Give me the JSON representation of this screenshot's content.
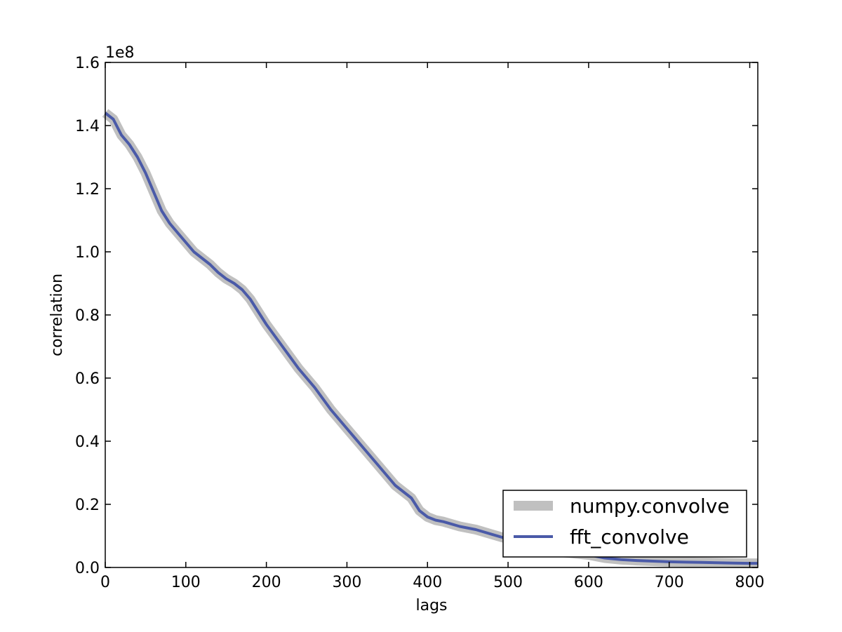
{
  "chart_data": {
    "type": "line",
    "title": "",
    "xlabel": "lags",
    "ylabel": "correlation",
    "y_offset_label": "1e8",
    "xlim": [
      0,
      810
    ],
    "ylim": [
      0,
      1.6
    ],
    "x_ticks": [
      0,
      100,
      200,
      300,
      400,
      500,
      600,
      700,
      800
    ],
    "x_tick_labels": [
      "0",
      "100",
      "200",
      "300",
      "400",
      "500",
      "600",
      "700",
      "800"
    ],
    "y_ticks": [
      0.0,
      0.2,
      0.4,
      0.6,
      0.8,
      1.0,
      1.2,
      1.4,
      1.6
    ],
    "y_tick_labels": [
      "0.0",
      "0.2",
      "0.4",
      "0.6",
      "0.8",
      "1.0",
      "1.2",
      "1.4",
      "1.6"
    ],
    "grid": false,
    "legend_position": "lower-right",
    "x": [
      0,
      10,
      20,
      30,
      40,
      50,
      60,
      70,
      80,
      90,
      100,
      110,
      120,
      130,
      140,
      150,
      160,
      170,
      180,
      190,
      200,
      220,
      240,
      260,
      280,
      300,
      320,
      340,
      360,
      380,
      390,
      400,
      410,
      420,
      440,
      460,
      480,
      500,
      520,
      540,
      560,
      580,
      600,
      620,
      640,
      660,
      680,
      700,
      720,
      740,
      760,
      780,
      800,
      810
    ],
    "series": [
      {
        "name": "numpy.convolve",
        "color": "#c0c0c0",
        "values": [
          1.44,
          1.42,
          1.37,
          1.34,
          1.3,
          1.25,
          1.19,
          1.13,
          1.09,
          1.06,
          1.03,
          1.0,
          0.98,
          0.96,
          0.935,
          0.915,
          0.9,
          0.88,
          0.85,
          0.81,
          0.77,
          0.7,
          0.63,
          0.57,
          0.5,
          0.44,
          0.38,
          0.32,
          0.26,
          0.22,
          0.18,
          0.16,
          0.15,
          0.145,
          0.13,
          0.12,
          0.105,
          0.09,
          0.075,
          0.06,
          0.05,
          0.045,
          0.04,
          0.03,
          0.025,
          0.022,
          0.02,
          0.018,
          0.017,
          0.016,
          0.015,
          0.014,
          0.013,
          0.013
        ]
      },
      {
        "name": "fft_convolve",
        "color": "#4a5aa8",
        "values": [
          1.44,
          1.42,
          1.37,
          1.34,
          1.3,
          1.25,
          1.19,
          1.13,
          1.09,
          1.06,
          1.03,
          1.0,
          0.98,
          0.96,
          0.935,
          0.915,
          0.9,
          0.88,
          0.85,
          0.81,
          0.77,
          0.7,
          0.63,
          0.57,
          0.5,
          0.44,
          0.38,
          0.32,
          0.26,
          0.22,
          0.18,
          0.16,
          0.15,
          0.145,
          0.13,
          0.12,
          0.105,
          0.09,
          0.075,
          0.06,
          0.05,
          0.045,
          0.04,
          0.03,
          0.025,
          0.022,
          0.02,
          0.018,
          0.017,
          0.016,
          0.015,
          0.014,
          0.013,
          0.013
        ]
      }
    ]
  }
}
